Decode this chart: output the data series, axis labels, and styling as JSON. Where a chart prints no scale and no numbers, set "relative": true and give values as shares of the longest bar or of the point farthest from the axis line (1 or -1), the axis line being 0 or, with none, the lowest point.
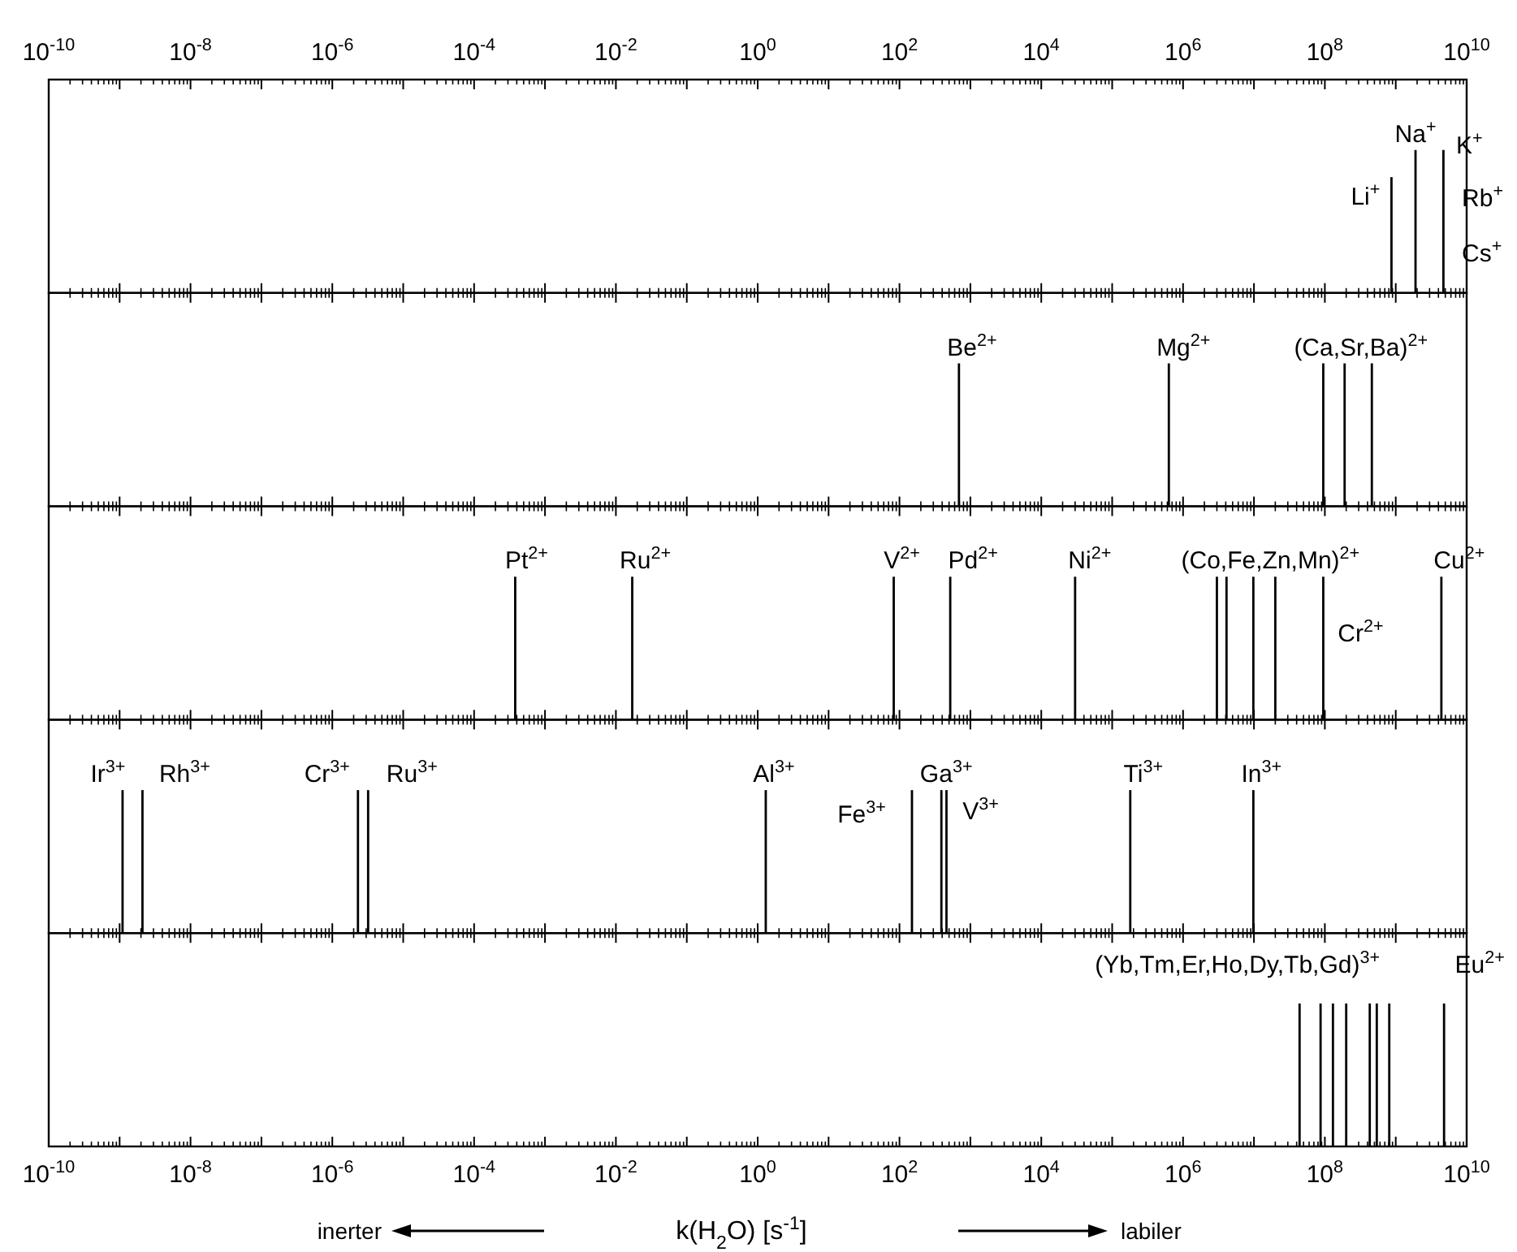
{
  "chart_data": [
    {
      "type": "bar",
      "relative": true,
      "log": "x",
      "color": "#000000",
      "tick_labels": "x",
      "x": [
        870000000.0,
        1900000000.0,
        4700000000.0
      ],
      "values": [
        0.81,
        1,
        1
      ],
      "xlim": [
        1e-10,
        10000000000.0
      ],
      "xticks": [
        {
          "value": 1e-10,
          "label": "10$^{-10}$"
        },
        {
          "value": 1e-09,
          "label": null
        },
        {
          "value": 1e-08,
          "label": "10$^{-8}$"
        },
        {
          "value": 1e-07,
          "label": null
        },
        {
          "value": 1e-06,
          "label": "10$^{-6}$"
        },
        {
          "value": 1e-05,
          "label": null
        },
        {
          "value": 0.0001,
          "label": "10$^{-4}$"
        },
        {
          "value": 0.001,
          "label": null
        },
        {
          "value": 0.01,
          "label": "10$^{-2}$"
        },
        {
          "value": 0.1,
          "label": null
        },
        {
          "value": 1,
          "label": "10$^{0}$"
        },
        {
          "value": 10,
          "label": null
        },
        {
          "value": 100,
          "label": "10$^{2}$"
        },
        {
          "value": 1000.0,
          "label": null
        },
        {
          "value": 10000.0,
          "label": "10$^{4}$"
        },
        {
          "value": 100000.0,
          "label": null
        },
        {
          "value": 1000000.0,
          "label": "10$^{6}$"
        },
        {
          "value": 10000000.0,
          "label": null
        },
        {
          "value": 100000000.0,
          "label": "10$^{8}$"
        },
        {
          "value": 1000000000.0,
          "label": null
        },
        {
          "value": 10000000000.0,
          "label": "10$^{10}$"
        }
      ],
      "annotations": [
        {
          "text": "Li$^{+}$",
          "x": 870000000.0,
          "y": 0.81
        },
        {
          "text": "Na$^{+}$",
          "x": 1900000000.0,
          "y": 1
        },
        {
          "text": "K$^{+}$",
          "x": 4700000000.0,
          "y": 1
        },
        "Rb$^{+}$",
        "Cs$^{+}$"
      ]
    },
    {
      "type": "bar",
      "relative": true,
      "log": "x",
      "color": "#000000",
      "tick_labels": false,
      "x": [
        690.0,
        630000.0,
        95000000.0,
        190000000.0,
        460000000.0
      ],
      "values": [
        1,
        1,
        1,
        1,
        1
      ],
      "xlim": [
        1e-10,
        10000000000.0
      ],
      "xticks": [
        {
          "value": 1e-10,
          "label": null
        },
        {
          "value": 1e-09,
          "label": null
        },
        {
          "value": 1e-08,
          "label": null
        },
        {
          "value": 1e-07,
          "label": null
        },
        {
          "value": 1e-06,
          "label": null
        },
        {
          "value": 1e-05,
          "label": null
        },
        {
          "value": 0.0001,
          "label": null
        },
        {
          "value": 0.001,
          "label": null
        },
        {
          "value": 0.01,
          "label": null
        },
        {
          "value": 0.1,
          "label": null
        },
        {
          "value": 1,
          "label": null
        },
        {
          "value": 10,
          "label": null
        },
        {
          "value": 100,
          "label": null
        },
        {
          "value": 1000.0,
          "label": null
        },
        {
          "value": 10000.0,
          "label": null
        },
        {
          "value": 100000.0,
          "label": null
        },
        {
          "value": 1000000.0,
          "label": null
        },
        {
          "value": 10000000.0,
          "label": null
        },
        {
          "value": 100000000.0,
          "label": null
        },
        {
          "value": 1000000000.0,
          "label": null
        },
        {
          "value": 10000000000.0,
          "label": null
        }
      ],
      "annotations": [
        {
          "text": "Be$^{2+}$",
          "x": 690.0,
          "y": 1
        },
        {
          "text": "Mg$^{2+}$",
          "x": 630000.0,
          "y": 1
        },
        {
          "text": "(Ca,Sr,Ba)$^{2+}$",
          "x": 190000000.0,
          "y": 1
        }
      ]
    },
    {
      "type": "bar",
      "relative": true,
      "log": "x",
      "color": "#000000",
      "tick_labels": false,
      "x": [
        0.00038,
        0.017,
        83,
        520.0,
        30000.0,
        3000000.0,
        4100000.0,
        9800000.0,
        20000000.0,
        95000000.0,
        4400000000.0
      ],
      "values": [
        1,
        1,
        1,
        1,
        1,
        1,
        1,
        1,
        1,
        1,
        1
      ],
      "xlim": [
        1e-10,
        10000000000.0
      ],
      "xticks": [
        {
          "value": 1e-10,
          "label": null
        },
        {
          "value": 1e-09,
          "label": null
        },
        {
          "value": 1e-08,
          "label": null
        },
        {
          "value": 1e-07,
          "label": null
        },
        {
          "value": 1e-06,
          "label": null
        },
        {
          "value": 1e-05,
          "label": null
        },
        {
          "value": 0.0001,
          "label": null
        },
        {
          "value": 0.001,
          "label": null
        },
        {
          "value": 0.01,
          "label": null
        },
        {
          "value": 0.1,
          "label": null
        },
        {
          "value": 1,
          "label": null
        },
        {
          "value": 10,
          "label": null
        },
        {
          "value": 100,
          "label": null
        },
        {
          "value": 1000.0,
          "label": null
        },
        {
          "value": 10000.0,
          "label": null
        },
        {
          "value": 100000.0,
          "label": null
        },
        {
          "value": 1000000.0,
          "label": null
        },
        {
          "value": 10000000.0,
          "label": null
        },
        {
          "value": 100000000.0,
          "label": null
        },
        {
          "value": 1000000000.0,
          "label": null
        },
        {
          "value": 10000000000.0,
          "label": null
        }
      ],
      "annotations": [
        {
          "text": "Pt$^{2+}$",
          "x": 0.00038,
          "y": 1
        },
        {
          "text": "Ru$^{2+}$",
          "x": 0.017,
          "y": 1
        },
        {
          "text": "V$^{2+}$",
          "x": 83,
          "y": 1
        },
        {
          "text": "Pd$^{2+}$",
          "x": 520.0,
          "y": 1
        },
        {
          "text": "Ni$^{2+}$",
          "x": 30000.0,
          "y": 1
        },
        {
          "text": "(Co,Fe,Zn,Mn)$^{2+}$",
          "x": 20000000.0,
          "y": 1
        },
        {
          "text": "Cr$^{2+}$",
          "x": 95000000.0,
          "y": 1
        },
        {
          "text": "Cu$^{2+}$",
          "x": 4400000000.0,
          "y": 1
        }
      ]
    },
    {
      "type": "bar",
      "relative": true,
      "log": "x",
      "color": "#000000",
      "tick_labels": false,
      "x": [
        1.1e-09,
        2.1e-09,
        2.3e-06,
        3.2e-06,
        1.3,
        150.0,
        390.0,
        460.0,
        180000.0,
        9800000.0
      ],
      "values": [
        1,
        1,
        1,
        1,
        1,
        1,
        1,
        1,
        1,
        1
      ],
      "xlim": [
        1e-10,
        10000000000.0
      ],
      "xticks": [
        {
          "value": 1e-10,
          "label": null
        },
        {
          "value": 1e-09,
          "label": null
        },
        {
          "value": 1e-08,
          "label": null
        },
        {
          "value": 1e-07,
          "label": null
        },
        {
          "value": 1e-06,
          "label": null
        },
        {
          "value": 1e-05,
          "label": null
        },
        {
          "value": 0.0001,
          "label": null
        },
        {
          "value": 0.001,
          "label": null
        },
        {
          "value": 0.01,
          "label": null
        },
        {
          "value": 0.1,
          "label": null
        },
        {
          "value": 1,
          "label": null
        },
        {
          "value": 10,
          "label": null
        },
        {
          "value": 100,
          "label": null
        },
        {
          "value": 1000.0,
          "label": null
        },
        {
          "value": 10000.0,
          "label": null
        },
        {
          "value": 100000.0,
          "label": null
        },
        {
          "value": 1000000.0,
          "label": null
        },
        {
          "value": 10000000.0,
          "label": null
        },
        {
          "value": 100000000.0,
          "label": null
        },
        {
          "value": 1000000000.0,
          "label": null
        },
        {
          "value": 10000000000.0,
          "label": null
        }
      ],
      "annotations": [
        {
          "text": "Ir$^{3+}$",
          "x": 1.1e-09,
          "y": 1
        },
        {
          "text": "Rh$^{3+}$",
          "x": 2.1e-09,
          "y": 1
        },
        {
          "text": "Cr$^{3+}$",
          "x": 2.3e-06,
          "y": 1
        },
        {
          "text": "Ru$^{3+}$",
          "x": 3.2e-06,
          "y": 1
        },
        {
          "text": "Al$^{3+}$",
          "x": 1.3,
          "y": 1
        },
        {
          "text": "Fe$^{3+}$",
          "x": 150.0,
          "y": 1
        },
        {
          "text": "Ga$^{3+}$",
          "x": 390.0,
          "y": 1
        },
        {
          "text": "V$^{3+}$",
          "x": 460.0,
          "y": 1
        },
        {
          "text": "Ti$^{3+}$",
          "x": 180000.0,
          "y": 1
        },
        {
          "text": "In$^{3+}$",
          "x": 9800000.0,
          "y": 1
        }
      ]
    },
    {
      "type": "bar",
      "relative": true,
      "log": "x",
      "color": "#000000",
      "tick_labels": "x",
      "x": [
        44000000.0,
        87000000.0,
        130000000.0,
        200000000.0,
        430000000.0,
        540000000.0,
        810000000.0,
        4800000000.0
      ],
      "values": [
        1,
        1,
        1,
        1,
        1,
        1,
        1,
        1
      ],
      "xlim": [
        1e-10,
        10000000000.0
      ],
      "xticks": [
        {
          "value": 1e-10,
          "label": "10$^{-10}$"
        },
        {
          "value": 1e-09,
          "label": null
        },
        {
          "value": 1e-08,
          "label": "10$^{-8}$"
        },
        {
          "value": 1e-07,
          "label": null
        },
        {
          "value": 1e-06,
          "label": "10$^{-6}$"
        },
        {
          "value": 1e-05,
          "label": null
        },
        {
          "value": 0.0001,
          "label": "10$^{-4}$"
        },
        {
          "value": 0.001,
          "label": null
        },
        {
          "value": 0.01,
          "label": "10$^{-2}$"
        },
        {
          "value": 0.1,
          "label": null
        },
        {
          "value": 1,
          "label": "10$^{0}$"
        },
        {
          "value": 10,
          "label": null
        },
        {
          "value": 100,
          "label": "10$^{2}$"
        },
        {
          "value": 1000.0,
          "label": null
        },
        {
          "value": 10000.0,
          "label": "10$^{4}$"
        },
        {
          "value": 100000.0,
          "label": null
        },
        {
          "value": 1000000.0,
          "label": "10$^{6}$"
        },
        {
          "value": 10000000.0,
          "label": null
        },
        {
          "value": 100000000.0,
          "label": "10$^{8}$"
        },
        {
          "value": 1000000000.0,
          "label": null
        },
        {
          "value": 10000000000.0,
          "label": "10$^{10}$"
        }
      ],
      "xlabel": "k(H$_{2}$O) [s$^{-1}$]",
      "annotations": [
        {
          "text": "(Yb,Tm,Er,Ho,Dy,Tb,Gd)$^{3+}$",
          "x": 200000000.0,
          "y": 1
        },
        {
          "text": "Eu$^{2+}$",
          "x": 4800000000.0,
          "y": 1
        },
        "inerter",
        "labiler"
      ]
    }
  ]
}
